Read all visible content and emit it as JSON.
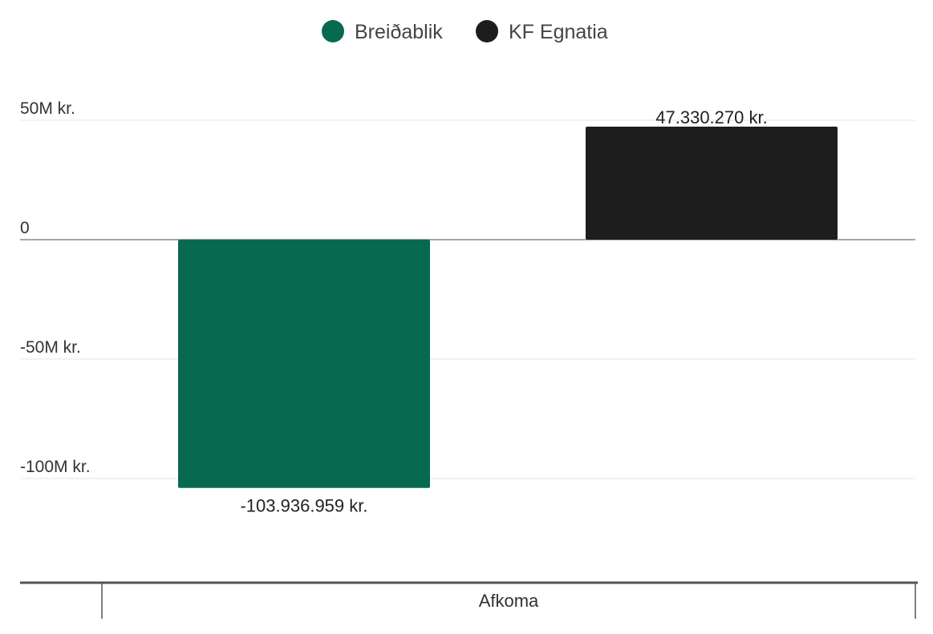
{
  "chart_data": {
    "type": "bar",
    "categories": [
      "Afkoma"
    ],
    "series": [
      {
        "name": "Breiðablik",
        "values": [
          -103936959
        ],
        "color": "#076a50",
        "value_label": "-103.936.959 kr."
      },
      {
        "name": "KF Egnatia",
        "values": [
          47330270
        ],
        "color": "#1e1d1d",
        "value_label": "47.330.270 kr."
      }
    ],
    "y_ticks": [
      {
        "value": 50000000,
        "label": "50M kr."
      },
      {
        "value": 0,
        "label": "0"
      },
      {
        "value": -50000000,
        "label": "-50M kr."
      },
      {
        "value": -100000000,
        "label": "-100M kr."
      }
    ],
    "ylim": [
      -115000000,
      55000000
    ],
    "legend_position": "top-center",
    "grid": true
  }
}
